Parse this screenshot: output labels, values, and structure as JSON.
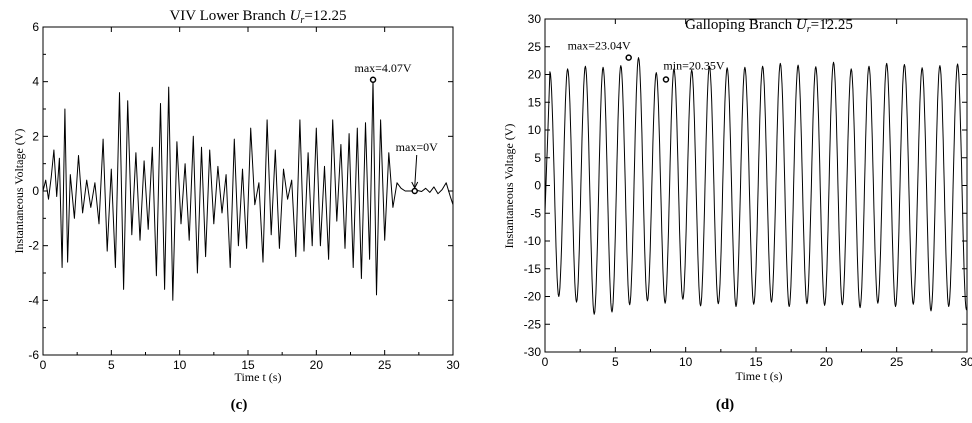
{
  "chart_data": [
    {
      "type": "line",
      "panel_label": "(c)",
      "title": "VIV Lower Branch",
      "title_suffix": "U",
      "title_subscript": "r",
      "title_value": "=12.25",
      "xlabel": "Time t (s)",
      "ylabel": "Instantaneous Voltage (V)",
      "xlim": [
        0,
        30
      ],
      "ylim": [
        -6,
        6
      ],
      "xticks": [
        0,
        5,
        10,
        15,
        20,
        25,
        30
      ],
      "yticks": [
        -6,
        -4,
        -2,
        0,
        2,
        4,
        6
      ],
      "xtick_labels": [
        "0",
        "5",
        "10",
        "15",
        "20",
        "25",
        "30"
      ],
      "ytick_labels": [
        "-6",
        "-4",
        "-2",
        "0",
        "2",
        "4",
        "6"
      ],
      "series": [
        {
          "x": [
            0.0,
            0.2,
            0.4,
            0.6,
            0.8,
            1.0,
            1.2,
            1.4,
            1.6,
            1.8,
            2.0,
            2.3,
            2.6,
            2.9,
            3.2,
            3.5,
            3.8,
            4.1,
            4.4,
            4.7,
            5.0,
            5.3,
            5.6,
            5.9,
            6.2,
            6.5,
            6.8,
            7.1,
            7.4,
            7.7,
            8.0,
            8.3,
            8.6,
            8.9,
            9.2,
            9.5,
            9.8,
            10.1,
            10.4,
            10.7,
            11.0,
            11.3,
            11.6,
            11.9,
            12.2,
            12.5,
            12.8,
            13.1,
            13.4,
            13.7,
            14.0,
            14.3,
            14.6,
            14.9,
            15.2,
            15.5,
            15.8,
            16.1,
            16.4,
            16.7,
            17.0,
            17.3,
            17.6,
            17.9,
            18.2,
            18.5,
            18.8,
            19.1,
            19.4,
            19.7,
            20.0,
            20.3,
            20.6,
            20.9,
            21.2,
            21.5,
            21.8,
            22.1,
            22.4,
            22.7,
            23.0,
            23.3,
            23.6,
            23.9,
            24.15,
            24.4,
            24.7,
            25.0,
            25.3,
            25.6,
            25.9,
            26.2,
            26.5,
            26.8,
            27.1,
            27.4,
            27.7,
            28.0,
            28.3,
            28.6,
            28.9,
            29.2,
            29.5,
            29.8,
            30.0
          ],
          "y": [
            0.0,
            0.4,
            -0.3,
            0.5,
            1.5,
            -0.2,
            1.2,
            -2.8,
            3.0,
            -2.6,
            0.6,
            -1.0,
            1.3,
            -0.8,
            0.4,
            -0.6,
            0.3,
            -1.2,
            1.9,
            -2.2,
            0.8,
            -2.8,
            3.6,
            -3.6,
            3.3,
            -1.6,
            1.4,
            -1.8,
            1.1,
            -1.4,
            1.6,
            -3.1,
            3.2,
            -3.6,
            3.8,
            -4.0,
            1.8,
            -1.2,
            1.0,
            -1.8,
            2.0,
            -3.0,
            1.6,
            -2.4,
            1.5,
            -1.2,
            0.9,
            -0.8,
            0.6,
            -2.8,
            1.9,
            -2.0,
            0.8,
            -2.1,
            2.3,
            -0.5,
            0.3,
            -2.6,
            2.6,
            -1.6,
            1.5,
            -2.1,
            0.8,
            -0.3,
            0.4,
            -2.4,
            2.6,
            -2.2,
            1.4,
            -2.0,
            2.3,
            -2.0,
            0.9,
            -2.5,
            2.6,
            -1.1,
            1.7,
            -2.1,
            2.1,
            -2.8,
            2.3,
            -3.2,
            2.5,
            -2.5,
            4.07,
            -3.8,
            2.6,
            -1.8,
            1.4,
            -0.6,
            0.3,
            0.1,
            0.0,
            0.0,
            0.0,
            0.02,
            -0.02,
            0.1,
            -0.05,
            0.15,
            -0.1,
            0.05,
            0.3,
            -0.2,
            -0.5
          ]
        }
      ],
      "markers": [
        {
          "x": 24.15,
          "y": 4.07,
          "label": "max=4.07V"
        },
        {
          "x": 27.2,
          "y": 0.0,
          "label": "max=0V"
        }
      ]
    },
    {
      "type": "line",
      "panel_label": "(d)",
      "title": "Galloping Branch",
      "title_suffix": "U",
      "title_subscript": "r",
      "title_value": "=12.25",
      "xlabel": "Time t (s)",
      "ylabel": "Instantaneous Voltage (V)",
      "xlim": [
        0,
        30
      ],
      "ylim": [
        -30,
        30
      ],
      "xticks": [
        0,
        5,
        10,
        15,
        20,
        25,
        30
      ],
      "yticks": [
        -30,
        -25,
        -20,
        -15,
        -10,
        -5,
        0,
        5,
        10,
        15,
        20,
        25,
        30
      ],
      "xtick_labels": [
        "0",
        "5",
        "10",
        "15",
        "20",
        "25",
        "30"
      ],
      "ytick_labels": [
        "-30",
        "-25",
        "-20",
        "-15",
        "-10",
        "-5",
        "0",
        "5",
        "10",
        "15",
        "20",
        "25",
        "30"
      ],
      "series": [
        {
          "period": 1.26,
          "phase": 0.35,
          "peaks": [
            20.5,
            21.0,
            21.5,
            21.3,
            21.6,
            23.04,
            20.35,
            21.0,
            20.8,
            21.5,
            21.2,
            21.3,
            21.5,
            22.0,
            21.7,
            21.4,
            22.2,
            21.0,
            21.5,
            22.0,
            21.8,
            21.2,
            21.6,
            21.9,
            21.5
          ],
          "troughs": [
            -20.0,
            -21.0,
            -23.2,
            -22.8,
            -21.5,
            -20.8,
            -21.2,
            -20.5,
            -21.7,
            -21.3,
            -21.8,
            -21.4,
            -21.0,
            -21.8,
            -21.3,
            -21.6,
            -21.5,
            -22.0,
            -21.2,
            -21.8,
            -21.4,
            -22.6,
            -21.8,
            -22.4,
            -21.5
          ]
        }
      ],
      "markers": [
        {
          "x": 5.95,
          "y": 23.04,
          "label": "max=23.04V"
        },
        {
          "x": 8.6,
          "y": 19.1,
          "label": "min=20.35V"
        }
      ]
    }
  ]
}
